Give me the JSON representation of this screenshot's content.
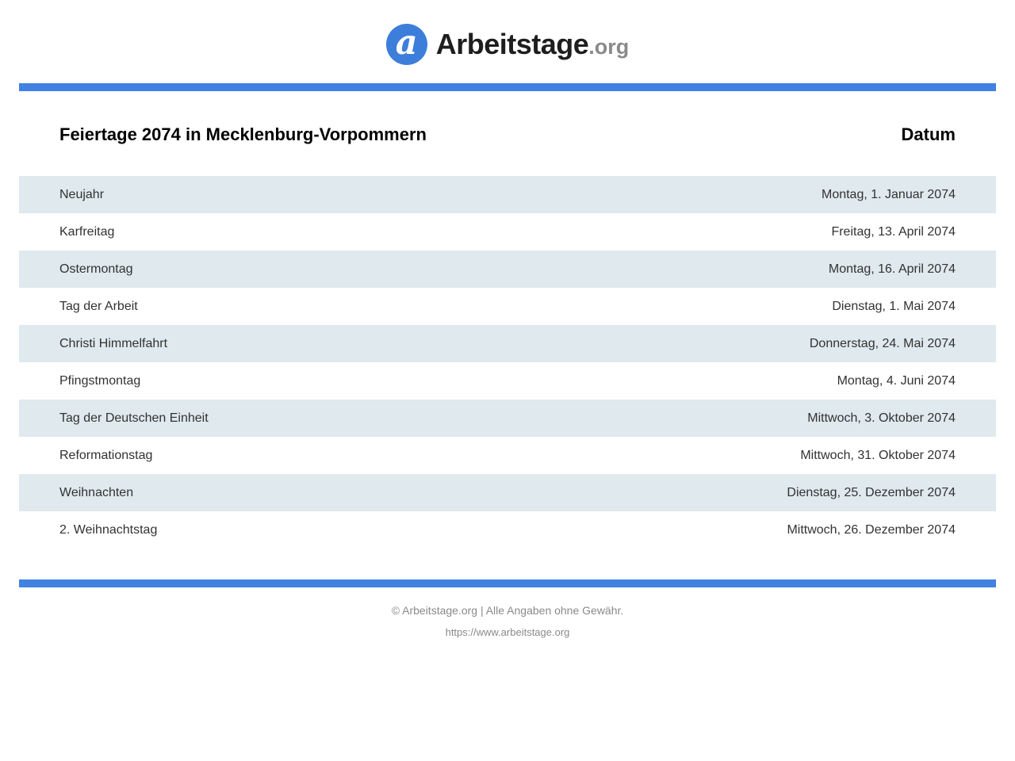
{
  "colors": {
    "accent_blue": "#4181e1",
    "logo_blue": "#3d7edb",
    "row_stripe": "#dfe9ee",
    "footer_gray": "#8a8a8a"
  },
  "logo": {
    "icon_letter": "a",
    "brand": "Arbeitstage",
    "tld": ".org"
  },
  "header": {
    "title": "Feiertage 2074 in Mecklenburg-Vorpommern",
    "date_column_label": "Datum"
  },
  "table": {
    "rows": [
      {
        "holiday": "Neujahr",
        "date": "Montag, 1. Januar 2074"
      },
      {
        "holiday": "Karfreitag",
        "date": "Freitag, 13. April 2074"
      },
      {
        "holiday": "Ostermontag",
        "date": "Montag, 16. April 2074"
      },
      {
        "holiday": "Tag der Arbeit",
        "date": "Dienstag, 1. Mai 2074"
      },
      {
        "holiday": "Christi Himmelfahrt",
        "date": "Donnerstag, 24. Mai 2074"
      },
      {
        "holiday": "Pfingstmontag",
        "date": "Montag, 4. Juni 2074"
      },
      {
        "holiday": "Tag der Deutschen Einheit",
        "date": "Mittwoch, 3. Oktober 2074"
      },
      {
        "holiday": "Reformationstag",
        "date": "Mittwoch, 31. Oktober 2074"
      },
      {
        "holiday": "Weihnachten",
        "date": "Dienstag, 25. Dezember 2074"
      },
      {
        "holiday": "2. Weihnachtstag",
        "date": "Mittwoch, 26. Dezember 2074"
      }
    ]
  },
  "footer": {
    "copyright": "© Arbeitstage.org | Alle Angaben ohne Gewähr.",
    "url": "https://www.arbeitstage.org"
  }
}
